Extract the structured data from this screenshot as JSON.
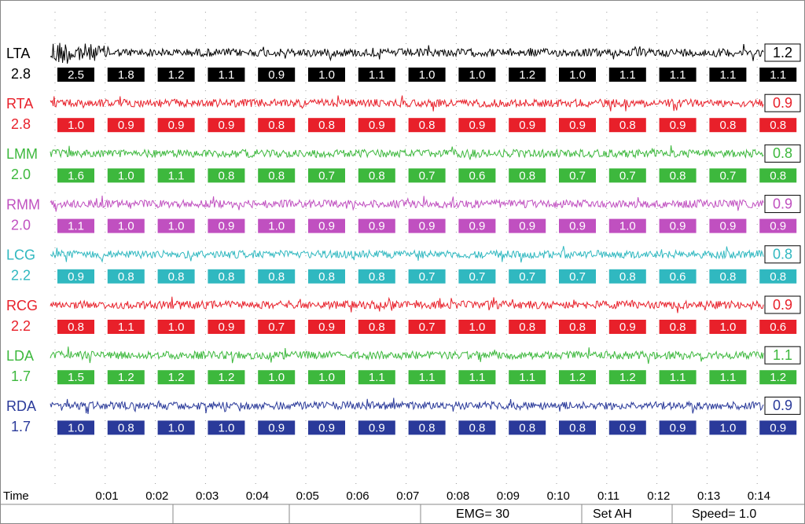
{
  "channels": [
    {
      "name": "LTA",
      "scale": "2.8",
      "current": "1.2",
      "color": "#000000",
      "values": [
        "2.5",
        "1.8",
        "1.2",
        "1.1",
        "0.9",
        "1.0",
        "1.1",
        "1.0",
        "1.0",
        "1.2",
        "1.0",
        "1.1",
        "1.1",
        "1.1",
        "1.1"
      ]
    },
    {
      "name": "RTA",
      "scale": "2.8",
      "current": "0.9",
      "color": "#e8202a",
      "values": [
        "1.0",
        "0.9",
        "0.9",
        "0.9",
        "0.8",
        "0.8",
        "0.9",
        "0.8",
        "0.9",
        "0.9",
        "0.9",
        "0.8",
        "0.9",
        "0.8",
        "0.8"
      ]
    },
    {
      "name": "LMM",
      "scale": "2.0",
      "current": "0.8",
      "color": "#3db83d",
      "values": [
        "1.6",
        "1.0",
        "1.1",
        "0.8",
        "0.8",
        "0.7",
        "0.8",
        "0.7",
        "0.6",
        "0.8",
        "0.7",
        "0.7",
        "0.8",
        "0.7",
        "0.8"
      ]
    },
    {
      "name": "RMM",
      "scale": "2.0",
      "current": "0.9",
      "color": "#c050c0",
      "values": [
        "1.1",
        "1.0",
        "1.0",
        "0.9",
        "1.0",
        "0.9",
        "0.9",
        "0.9",
        "0.9",
        "0.9",
        "0.9",
        "1.0",
        "0.9",
        "0.9",
        "0.9"
      ]
    },
    {
      "name": "LCG",
      "scale": "2.2",
      "current": "0.8",
      "color": "#30b8c0",
      "values": [
        "0.9",
        "0.8",
        "0.8",
        "0.8",
        "0.8",
        "0.8",
        "0.8",
        "0.7",
        "0.7",
        "0.7",
        "0.7",
        "0.8",
        "0.6",
        "0.8",
        "0.8"
      ]
    },
    {
      "name": "RCG",
      "scale": "2.2",
      "current": "0.9",
      "color": "#e8202a",
      "values": [
        "0.8",
        "1.1",
        "1.0",
        "0.9",
        "0.7",
        "0.9",
        "0.8",
        "0.7",
        "1.0",
        "0.8",
        "0.8",
        "0.9",
        "0.8",
        "1.0",
        "0.6"
      ]
    },
    {
      "name": "LDA",
      "scale": "1.7",
      "current": "1.1",
      "color": "#3db83d",
      "values": [
        "1.5",
        "1.2",
        "1.2",
        "1.2",
        "1.0",
        "1.0",
        "1.1",
        "1.1",
        "1.1",
        "1.1",
        "1.2",
        "1.2",
        "1.1",
        "1.1",
        "1.2"
      ]
    },
    {
      "name": "RDA",
      "scale": "1.7",
      "current": "0.9",
      "color": "#2a3a9a",
      "values": [
        "1.0",
        "0.8",
        "1.0",
        "1.0",
        "0.9",
        "0.9",
        "0.9",
        "0.8",
        "0.8",
        "0.8",
        "0.8",
        "0.9",
        "0.9",
        "1.0",
        "0.9"
      ]
    }
  ],
  "time_axis": {
    "label": "Time",
    "ticks": [
      "0:01",
      "0:02",
      "0:03",
      "0:04",
      "0:05",
      "0:06",
      "0:07",
      "0:08",
      "0:09",
      "0:10",
      "0:11",
      "0:12",
      "0:13",
      "0:14"
    ]
  },
  "status_bar": {
    "emg": "EMG= 30",
    "mode": "Set AH",
    "speed": "Speed= 1.0"
  }
}
